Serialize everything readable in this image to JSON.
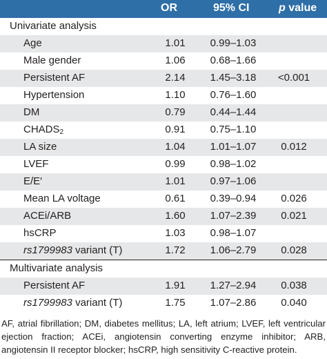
{
  "columns": {
    "or": "OR",
    "ci": "95% CI",
    "p_italic": "p",
    "p_rest": " value"
  },
  "sections": [
    {
      "title": "Univariate analysis",
      "rows": [
        {
          "label": "Age",
          "or": "1.01",
          "ci": "0.99–1.03",
          "p": ""
        },
        {
          "label": "Male gender",
          "or": "1.06",
          "ci": "0.68–1.66",
          "p": ""
        },
        {
          "label": "Persistent AF",
          "or": "2.14",
          "ci": "1.45–3.18",
          "p": "<0.001"
        },
        {
          "label": "Hypertension",
          "or": "1.10",
          "ci": "0.76–1.60",
          "p": ""
        },
        {
          "label": "DM",
          "or": "0.79",
          "ci": "0.44–1.44",
          "p": ""
        },
        {
          "label": "CHADS",
          "label_sub": "2",
          "or": "0.91",
          "ci": "0.75–1.10",
          "p": ""
        },
        {
          "label": "LA size",
          "or": "1.04",
          "ci": "1.01–1.07",
          "p": "0.012"
        },
        {
          "label": "LVEF",
          "or": "0.99",
          "ci": "0.98–1.02",
          "p": ""
        },
        {
          "label": "E/E′",
          "or": "1.01",
          "ci": "0.97–1.06",
          "p": ""
        },
        {
          "label": "Mean LA voltage",
          "or": "0.61",
          "ci": "0.39–0.94",
          "p": "0.026"
        },
        {
          "label": "ACEi/ARB",
          "or": "1.60",
          "ci": "1.07–2.39",
          "p": "0.021"
        },
        {
          "label": "hsCRP",
          "or": "1.03",
          "ci": "0.98–1.07",
          "p": ""
        },
        {
          "label_italic": "rs1799983",
          "label": " variant (T)",
          "or": "1.72",
          "ci": "1.06–2.79",
          "p": "0.028"
        }
      ]
    },
    {
      "title": "Multivariate analysis",
      "rows": [
        {
          "label": "Persistent AF",
          "or": "1.91",
          "ci": "1.27–2.94",
          "p": "0.038"
        },
        {
          "label_italic": "rs1799983",
          "label": " variant (T)",
          "or": "1.75",
          "ci": "1.07–2.86",
          "p": "0.040"
        }
      ]
    }
  ],
  "footnote": "AF, atrial fibrillation; DM, diabetes mellitus; LA, left atrium; LVEF, left ventricular ejection fraction; ACEi, angiotensin converting enzyme inhibitor; ARB, angiotensin II receptor blocker; hsCRP, high sensitivity C-reactive protein."
}
